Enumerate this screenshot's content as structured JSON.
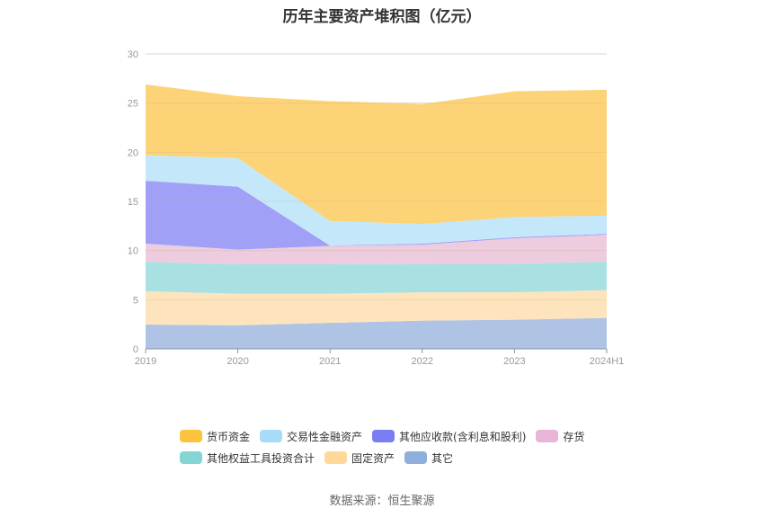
{
  "title": "历年主要资产堆积图（亿元）",
  "source": "数据来源：恒生聚源",
  "chart_data": {
    "type": "area",
    "stacked": true,
    "title": "历年主要资产堆积图（亿元）",
    "xlabel": "",
    "ylabel": "",
    "ylim": [
      0,
      30
    ],
    "yticks": [
      0,
      5,
      10,
      15,
      20,
      25,
      30
    ],
    "grid": true,
    "legend_position": "bottom",
    "categories": [
      "2019",
      "2020",
      "2021",
      "2022",
      "2023",
      "2024H1"
    ],
    "series": [
      {
        "name": "其它",
        "color": "#8eaedb",
        "fill": "#afc3e4",
        "values": [
          2.47,
          2.4,
          2.65,
          2.87,
          2.96,
          3.14
        ]
      },
      {
        "name": "固定资产",
        "color": "#ffd899",
        "fill": "#fee4bc",
        "values": [
          3.39,
          3.2,
          2.95,
          2.88,
          2.8,
          2.83
        ]
      },
      {
        "name": "其他权益工具投资合计",
        "color": "#86d5d5",
        "fill": "#a9e1e2",
        "values": [
          3.01,
          3.0,
          3.0,
          2.88,
          2.9,
          2.9
        ]
      },
      {
        "name": "存货",
        "color": "#e8b4d8",
        "fill": "#eeccdf",
        "values": [
          1.83,
          1.5,
          1.87,
          1.97,
          2.59,
          2.73
        ]
      },
      {
        "name": "其他应收款(含利息和股利)",
        "color": "#7a7ef2",
        "fill": "#a0a0f6",
        "values": [
          6.4,
          6.4,
          0.03,
          0.1,
          0.1,
          0.1
        ]
      },
      {
        "name": "交易性金融资产",
        "color": "#a6dcf7",
        "fill": "#c4e7f9",
        "values": [
          2.6,
          2.9,
          2.5,
          2.0,
          2.05,
          1.85
        ]
      },
      {
        "name": "货币资金",
        "color": "#fdc23e",
        "fill": "#fdd378",
        "values": [
          7.2,
          6.3,
          12.2,
          12.2,
          12.8,
          12.8
        ]
      }
    ]
  },
  "legend": {
    "rows": [
      [
        {
          "label": "货币资金",
          "color": "#fdc23e"
        },
        {
          "label": "交易性金融资产",
          "color": "#a6dcf7"
        },
        {
          "label": "其他应收款(含利息和股利)",
          "color": "#7a7ef2"
        },
        {
          "label": "存货",
          "color": "#e8b4d8"
        }
      ],
      [
        {
          "label": "其他权益工具投资合计",
          "color": "#86d5d5"
        },
        {
          "label": "固定资产",
          "color": "#ffd899"
        },
        {
          "label": "其它",
          "color": "#8eaedb"
        }
      ]
    ]
  }
}
